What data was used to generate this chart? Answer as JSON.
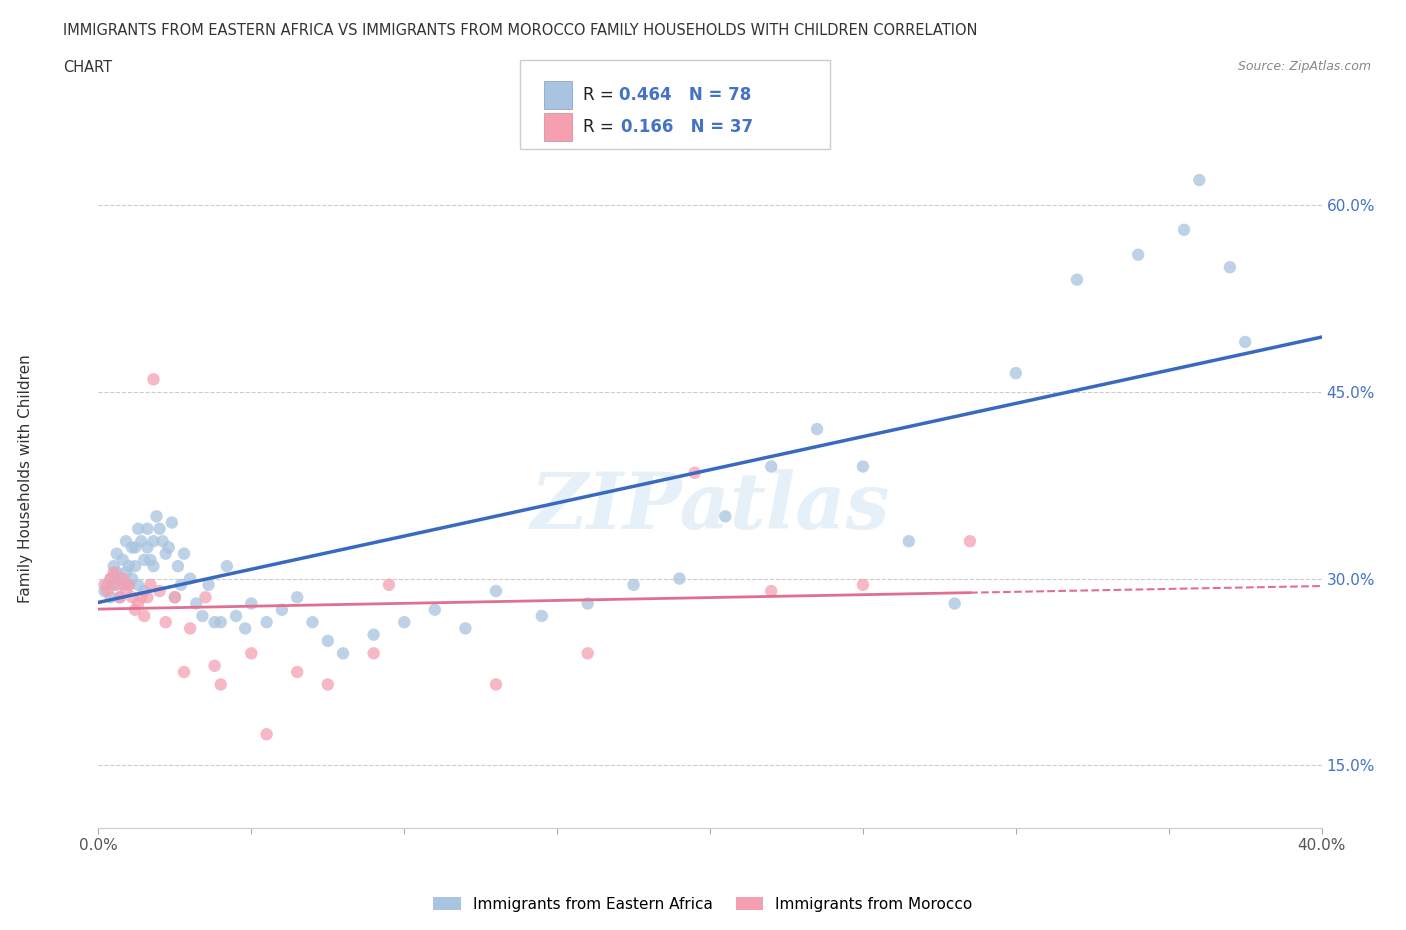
{
  "title_line1": "IMMIGRANTS FROM EASTERN AFRICA VS IMMIGRANTS FROM MOROCCO FAMILY HOUSEHOLDS WITH CHILDREN CORRELATION",
  "title_line2": "CHART",
  "source": "Source: ZipAtlas.com",
  "ylabel": "Family Households with Children",
  "xlim": [
    0.0,
    0.4
  ],
  "ylim": [
    0.1,
    0.66
  ],
  "x_ticks": [
    0.0,
    0.05,
    0.1,
    0.15,
    0.2,
    0.25,
    0.3,
    0.35,
    0.4
  ],
  "y_ticks_right": [
    0.15,
    0.3,
    0.45,
    0.6
  ],
  "y_tick_labels_right": [
    "15.0%",
    "30.0%",
    "45.0%",
    "60.0%"
  ],
  "r_blue": 0.464,
  "n_blue": 78,
  "r_pink": 0.166,
  "n_pink": 37,
  "blue_color": "#a8c4e0",
  "pink_color": "#f4a0b0",
  "line_blue": "#3a6abf",
  "line_pink": "#e07090",
  "watermark": "ZIPatlas",
  "legend_label_blue": "Immigrants from Eastern Africa",
  "legend_label_pink": "Immigrants from Morocco",
  "blue_scatter_x": [
    0.002,
    0.003,
    0.004,
    0.004,
    0.005,
    0.005,
    0.006,
    0.006,
    0.007,
    0.007,
    0.008,
    0.008,
    0.009,
    0.009,
    0.01,
    0.01,
    0.011,
    0.011,
    0.012,
    0.012,
    0.013,
    0.013,
    0.014,
    0.015,
    0.015,
    0.016,
    0.016,
    0.017,
    0.018,
    0.018,
    0.019,
    0.02,
    0.021,
    0.022,
    0.023,
    0.024,
    0.025,
    0.026,
    0.027,
    0.028,
    0.03,
    0.032,
    0.034,
    0.036,
    0.038,
    0.04,
    0.042,
    0.045,
    0.048,
    0.05,
    0.055,
    0.06,
    0.065,
    0.07,
    0.075,
    0.08,
    0.09,
    0.1,
    0.11,
    0.12,
    0.13,
    0.145,
    0.16,
    0.175,
    0.19,
    0.205,
    0.22,
    0.235,
    0.25,
    0.265,
    0.28,
    0.3,
    0.32,
    0.34,
    0.355,
    0.36,
    0.37,
    0.375
  ],
  "blue_scatter_y": [
    0.29,
    0.295,
    0.3,
    0.285,
    0.31,
    0.295,
    0.305,
    0.32,
    0.3,
    0.285,
    0.315,
    0.295,
    0.305,
    0.33,
    0.295,
    0.31,
    0.325,
    0.3,
    0.31,
    0.325,
    0.295,
    0.34,
    0.33,
    0.315,
    0.29,
    0.34,
    0.325,
    0.315,
    0.33,
    0.31,
    0.35,
    0.34,
    0.33,
    0.32,
    0.325,
    0.345,
    0.285,
    0.31,
    0.295,
    0.32,
    0.3,
    0.28,
    0.27,
    0.295,
    0.265,
    0.265,
    0.31,
    0.27,
    0.26,
    0.28,
    0.265,
    0.275,
    0.285,
    0.265,
    0.25,
    0.24,
    0.255,
    0.265,
    0.275,
    0.26,
    0.29,
    0.27,
    0.28,
    0.295,
    0.3,
    0.35,
    0.39,
    0.42,
    0.39,
    0.33,
    0.28,
    0.465,
    0.54,
    0.56,
    0.58,
    0.62,
    0.55,
    0.49
  ],
  "pink_scatter_x": [
    0.002,
    0.003,
    0.004,
    0.005,
    0.006,
    0.007,
    0.008,
    0.009,
    0.01,
    0.011,
    0.012,
    0.013,
    0.014,
    0.015,
    0.016,
    0.017,
    0.018,
    0.02,
    0.022,
    0.025,
    0.028,
    0.03,
    0.035,
    0.038,
    0.04,
    0.05,
    0.055,
    0.065,
    0.075,
    0.09,
    0.095,
    0.13,
    0.16,
    0.195,
    0.22,
    0.25,
    0.285
  ],
  "pink_scatter_y": [
    0.295,
    0.29,
    0.3,
    0.305,
    0.295,
    0.285,
    0.3,
    0.29,
    0.295,
    0.285,
    0.275,
    0.28,
    0.285,
    0.27,
    0.285,
    0.295,
    0.46,
    0.29,
    0.265,
    0.285,
    0.225,
    0.26,
    0.285,
    0.23,
    0.215,
    0.24,
    0.175,
    0.225,
    0.215,
    0.24,
    0.295,
    0.215,
    0.24,
    0.385,
    0.29,
    0.295,
    0.33
  ]
}
